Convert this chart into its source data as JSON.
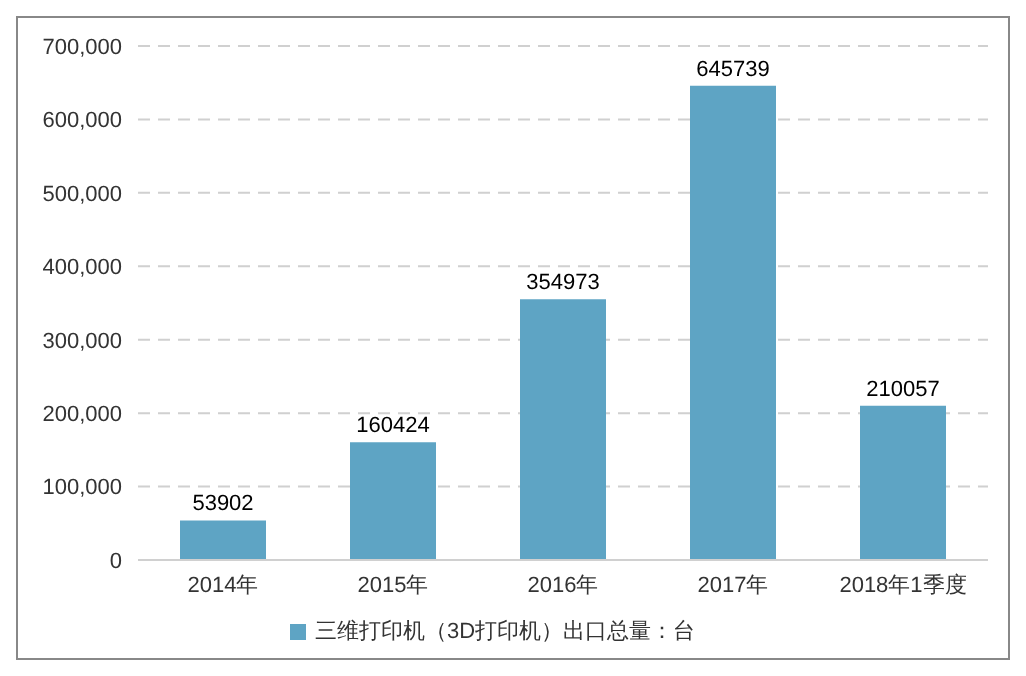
{
  "chart_data": {
    "type": "bar",
    "categories": [
      "2014年",
      "2015年",
      "2016年",
      "2017年",
      "2018年1季度"
    ],
    "series": [
      {
        "name": "三维打印机（3D打印机）出口总量：台",
        "color": "#5ea4c4",
        "values": [
          53902,
          160424,
          354973,
          645739,
          210057
        ]
      }
    ],
    "ylim": [
      0,
      700000
    ],
    "yticks": [
      {
        "value": 0,
        "label": "0"
      },
      {
        "value": 100000,
        "label": "100,000"
      },
      {
        "value": 200000,
        "label": "200,000"
      },
      {
        "value": 300000,
        "label": "300,000"
      },
      {
        "value": 400000,
        "label": "400,000"
      },
      {
        "value": 500000,
        "label": "500,000"
      },
      {
        "value": 600000,
        "label": "600,000"
      },
      {
        "value": 700000,
        "label": "700,000"
      }
    ],
    "grid": "y",
    "legend": "bottom",
    "data_labels": true
  }
}
